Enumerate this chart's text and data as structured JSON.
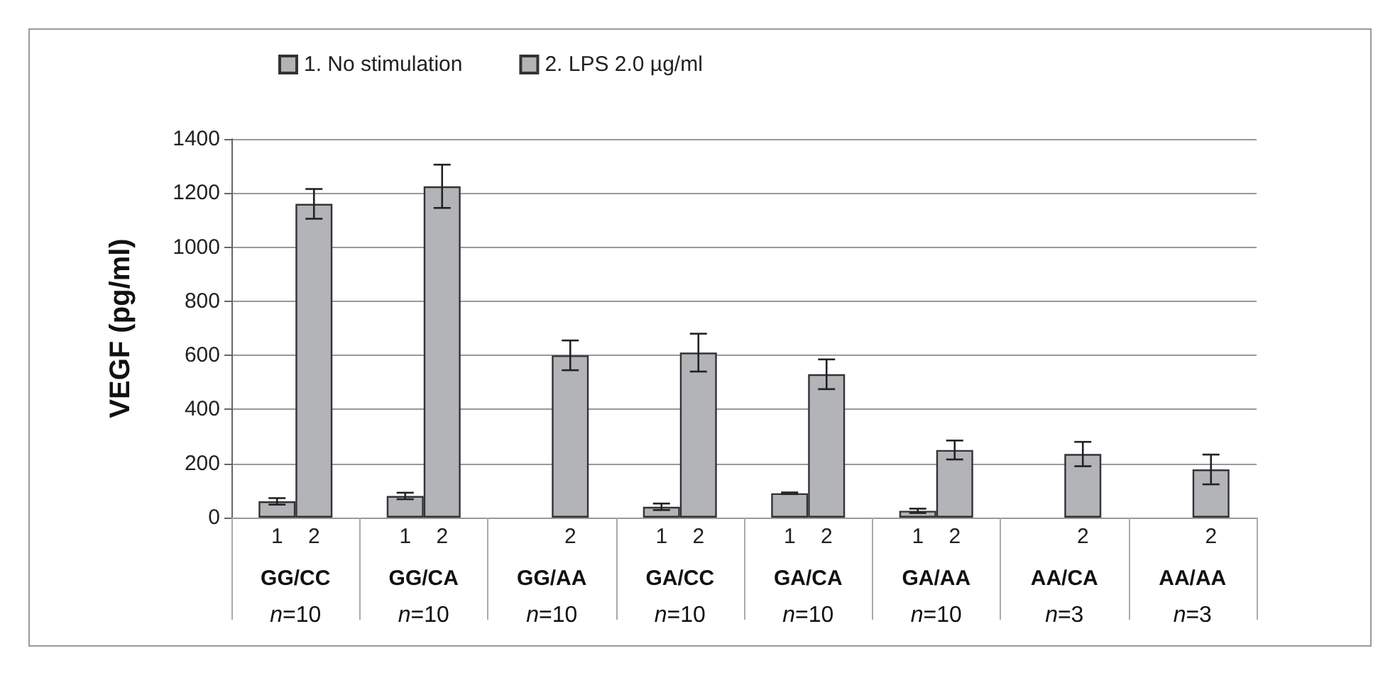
{
  "chart_data": {
    "type": "bar",
    "ylabel": "VEGF (pg/ml)",
    "categories": [
      "GG/CC\nn=10",
      "GG/CA\nn=10",
      "GG/AA\nn=10",
      "GA/CC\nn=10",
      "GA/CA\nn=10",
      "GA/AA\nn=10",
      "AA/CA\nn=3",
      "AA/AA\nn=3"
    ],
    "series": [
      {
        "name": "1. No stimulation",
        "color": "#b3b4b8",
        "values": [
          60,
          80,
          null,
          40,
          90,
          25,
          null,
          null
        ],
        "errors": [
          12,
          12,
          null,
          12,
          3,
          8,
          null,
          null
        ]
      },
      {
        "name": "2. LPS 2.0 µg/ml",
        "color": "#b3b4b8",
        "values": [
          1160,
          1225,
          600,
          610,
          530,
          250,
          235,
          178
        ],
        "errors": [
          55,
          80,
          55,
          70,
          55,
          35,
          45,
          55
        ]
      }
    ],
    "ylim": [
      0,
      1400
    ],
    "yticks": [
      0,
      200,
      400,
      600,
      800,
      1000,
      1200,
      1400
    ],
    "grid": "y",
    "legend": "top left",
    "annotations": [
      "1",
      "2",
      "1",
      "2",
      "2",
      "1",
      "2",
      "1",
      "2",
      "1",
      "2",
      "2",
      "2"
    ]
  }
}
